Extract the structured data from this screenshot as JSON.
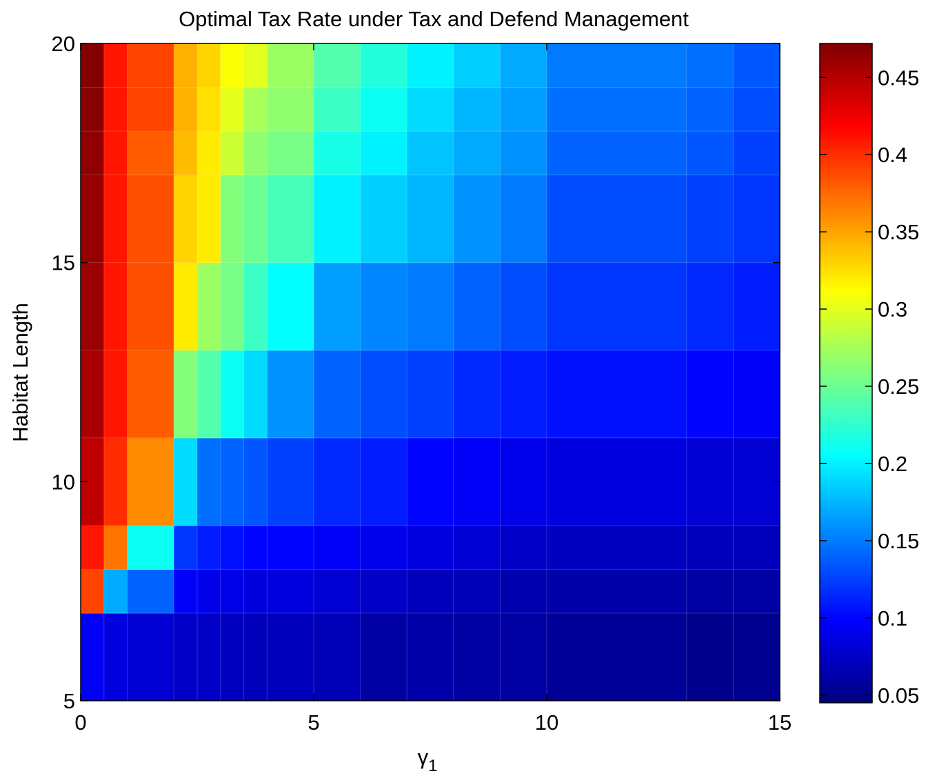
{
  "chart_data": {
    "type": "heatmap",
    "title": "Optimal Tax Rate under Tax and Defend Management",
    "xlabel_main": "γ",
    "xlabel_sub": "1",
    "ylabel": "Habitat Length",
    "xlim": [
      0,
      15
    ],
    "ylim": [
      5,
      20
    ],
    "xticks": [
      "0",
      "5",
      "10",
      "15"
    ],
    "yticks": [
      "5",
      "10",
      "15",
      "20"
    ],
    "colorbar": {
      "colormap": "jet",
      "clim": [
        0.045,
        0.472
      ],
      "ticks": [
        "0.05",
        "0.1",
        "0.15",
        "0.2",
        "0.25",
        "0.3",
        "0.35",
        "0.4",
        "0.45"
      ]
    },
    "x_edges": [
      0,
      0.5,
      1,
      2,
      2.5,
      3,
      3.5,
      4,
      5,
      6,
      7,
      8,
      9,
      10,
      13,
      14,
      15
    ],
    "y_edges": [
      5,
      7,
      8,
      9,
      11,
      13,
      15,
      17,
      18,
      19,
      20
    ],
    "values": [
      [
        0.095,
        0.085,
        0.08,
        0.075,
        0.075,
        0.072,
        0.07,
        0.07,
        0.068,
        0.06,
        0.062,
        0.06,
        0.06,
        0.055,
        0.05,
        0.052
      ],
      [
        0.39,
        0.17,
        0.14,
        0.095,
        0.09,
        0.088,
        0.085,
        0.085,
        0.08,
        0.075,
        0.07,
        0.068,
        0.065,
        0.062,
        0.06,
        0.06
      ],
      [
        0.41,
        0.37,
        0.21,
        0.12,
        0.11,
        0.105,
        0.1,
        0.1,
        0.095,
        0.09,
        0.085,
        0.08,
        0.075,
        0.072,
        0.07,
        0.07
      ],
      [
        0.445,
        0.4,
        0.36,
        0.19,
        0.145,
        0.14,
        0.135,
        0.125,
        0.115,
        0.11,
        0.1,
        0.095,
        0.09,
        0.085,
        0.08,
        0.08
      ],
      [
        0.455,
        0.41,
        0.38,
        0.26,
        0.24,
        0.21,
        0.19,
        0.16,
        0.14,
        0.13,
        0.125,
        0.115,
        0.11,
        0.105,
        0.1,
        0.095
      ],
      [
        0.46,
        0.41,
        0.385,
        0.32,
        0.27,
        0.255,
        0.23,
        0.205,
        0.165,
        0.155,
        0.15,
        0.14,
        0.13,
        0.12,
        0.115,
        0.11
      ],
      [
        0.462,
        0.41,
        0.385,
        0.33,
        0.32,
        0.26,
        0.25,
        0.235,
        0.2,
        0.185,
        0.175,
        0.16,
        0.15,
        0.13,
        0.125,
        0.12
      ],
      [
        0.465,
        0.41,
        0.38,
        0.34,
        0.32,
        0.29,
        0.265,
        0.255,
        0.215,
        0.2,
        0.18,
        0.17,
        0.16,
        0.14,
        0.135,
        0.125
      ],
      [
        0.468,
        0.41,
        0.39,
        0.345,
        0.325,
        0.3,
        0.275,
        0.265,
        0.23,
        0.21,
        0.19,
        0.175,
        0.165,
        0.145,
        0.14,
        0.13
      ],
      [
        0.47,
        0.41,
        0.39,
        0.345,
        0.33,
        0.31,
        0.3,
        0.27,
        0.24,
        0.22,
        0.2,
        0.185,
        0.17,
        0.15,
        0.145,
        0.135
      ]
    ]
  }
}
